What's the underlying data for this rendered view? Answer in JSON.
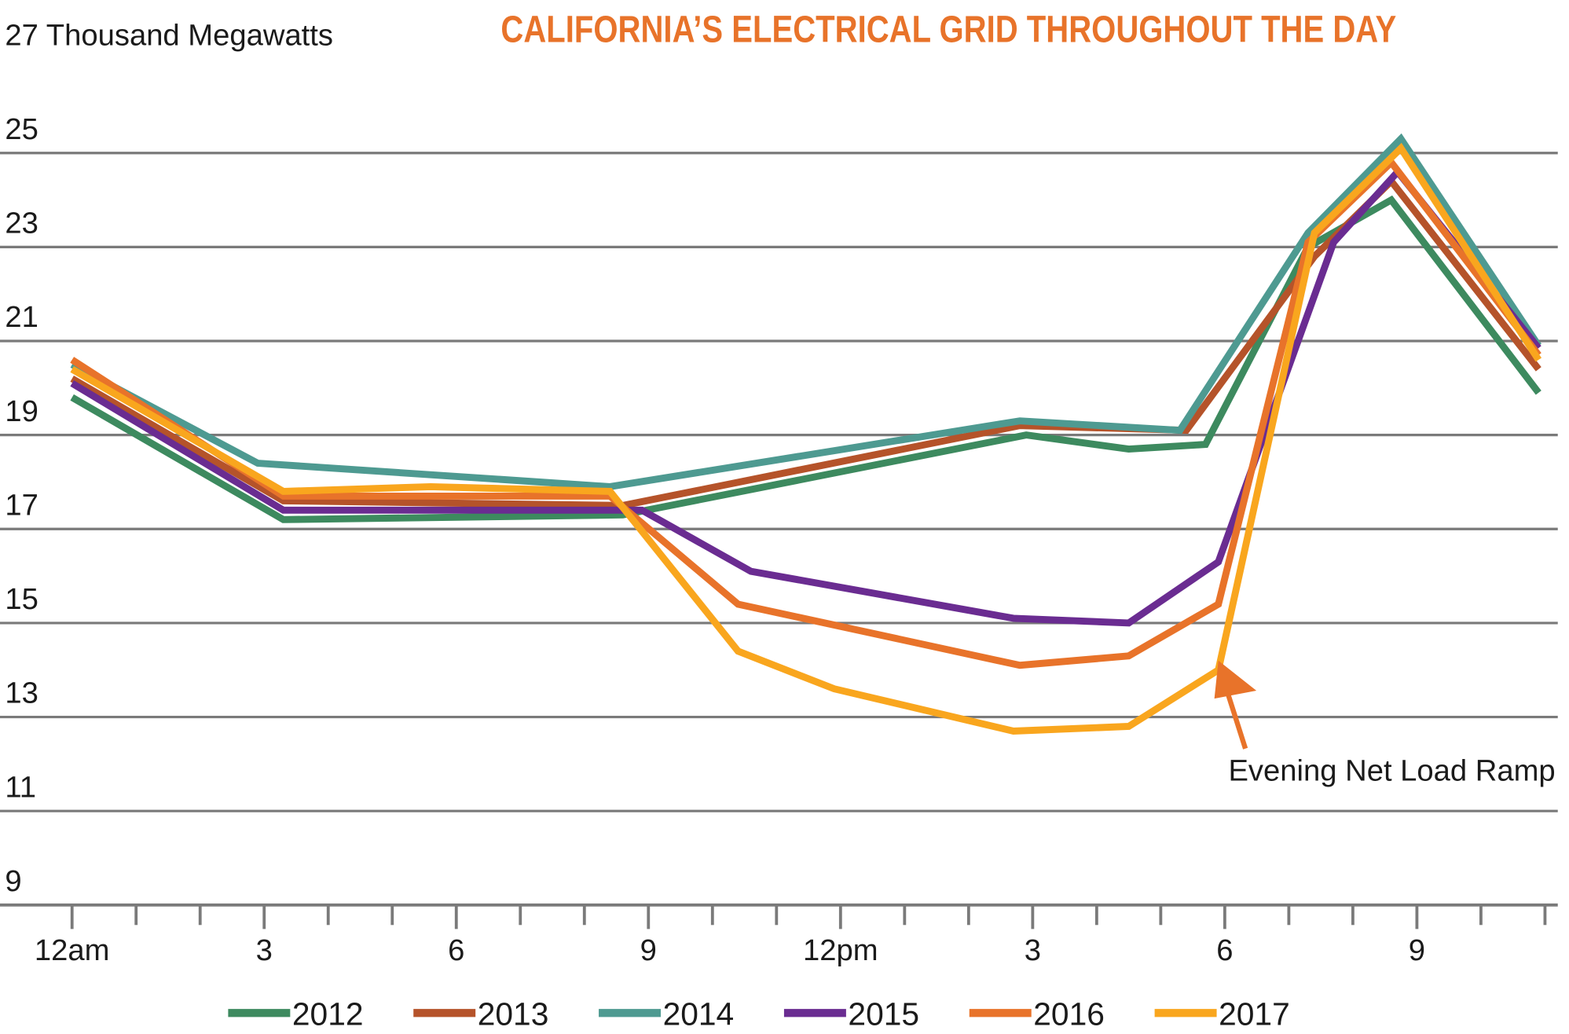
{
  "chart_data": {
    "type": "line",
    "title": "CALIFORNIA’S ELECTRICAL GRID THROUGHOUT THE DAY",
    "annotation": {
      "text": "Evening Net Load Ramp",
      "x": 17.9,
      "y": 14.2,
      "color": "#e8732a"
    },
    "xlim": [
      0,
      23.2
    ],
    "xticks": [
      {
        "value": 0,
        "label": "12am"
      },
      3,
      6,
      9,
      {
        "value": 12,
        "label": "12pm"
      },
      {
        "value": 15,
        "label": "3"
      },
      {
        "value": 18,
        "label": "6"
      },
      {
        "value": 21,
        "label": "9"
      }
    ],
    "xticks_minor": [
      1,
      2,
      4,
      5,
      7,
      8,
      10,
      11,
      13,
      14,
      16,
      17,
      19,
      20,
      22,
      23
    ],
    "ylim": [
      9,
      27
    ],
    "yticks": [
      9,
      11,
      13,
      15,
      17,
      19,
      21,
      23,
      25,
      {
        "value": 27,
        "label": "27 Thousand Megawatts"
      }
    ],
    "grid": true,
    "legend": "bottom",
    "series": [
      {
        "name": "2012",
        "color": "#3d8a5f",
        "x": [
          0,
          3.3,
          8.6,
          14.9,
          16.5,
          17.7,
          19.3,
          20.6,
          22.9
        ],
        "values": [
          19.8,
          17.2,
          17.3,
          19.0,
          18.7,
          18.8,
          23.0,
          24.0,
          19.9
        ]
      },
      {
        "name": "2013",
        "color": "#b5532a",
        "x": [
          0,
          3.3,
          8.6,
          14.8,
          17.4,
          19.4,
          20.6,
          22.9
        ],
        "values": [
          20.2,
          17.6,
          17.5,
          19.2,
          19.1,
          22.8,
          24.4,
          20.4
        ]
      },
      {
        "name": "2014",
        "color": "#4e9a91",
        "x": [
          0,
          2.9,
          8.4,
          14.8,
          17.3,
          19.3,
          20.75,
          22.9
        ],
        "values": [
          20.5,
          18.4,
          17.9,
          19.3,
          19.1,
          23.3,
          25.3,
          20.9
        ]
      },
      {
        "name": "2015",
        "color": "#6a2c91",
        "x": [
          0,
          3.3,
          8.9,
          10.6,
          14.7,
          16.5,
          17.9,
          19.7,
          20.7,
          22.9
        ],
        "values": [
          20.1,
          17.4,
          17.4,
          16.1,
          15.1,
          15.0,
          16.3,
          23.1,
          24.6,
          20.85
        ]
      },
      {
        "name": "2016",
        "color": "#e8732a",
        "x": [
          0,
          3.3,
          8.4,
          10.4,
          14.8,
          16.5,
          17.9,
          19.3,
          20.6,
          22.9
        ],
        "values": [
          20.6,
          17.7,
          17.7,
          15.4,
          14.1,
          14.3,
          15.4,
          23.1,
          24.8,
          20.7
        ]
      },
      {
        "name": "2017",
        "color": "#f9a61e",
        "x": [
          0,
          3.3,
          5.6,
          8.4,
          10.4,
          11.9,
          14.7,
          16.5,
          17.9,
          19.4,
          20.75,
          22.9
        ],
        "values": [
          20.4,
          17.8,
          17.9,
          17.8,
          14.4,
          13.6,
          12.7,
          12.8,
          14.0,
          23.3,
          25.1,
          20.6
        ]
      }
    ]
  }
}
